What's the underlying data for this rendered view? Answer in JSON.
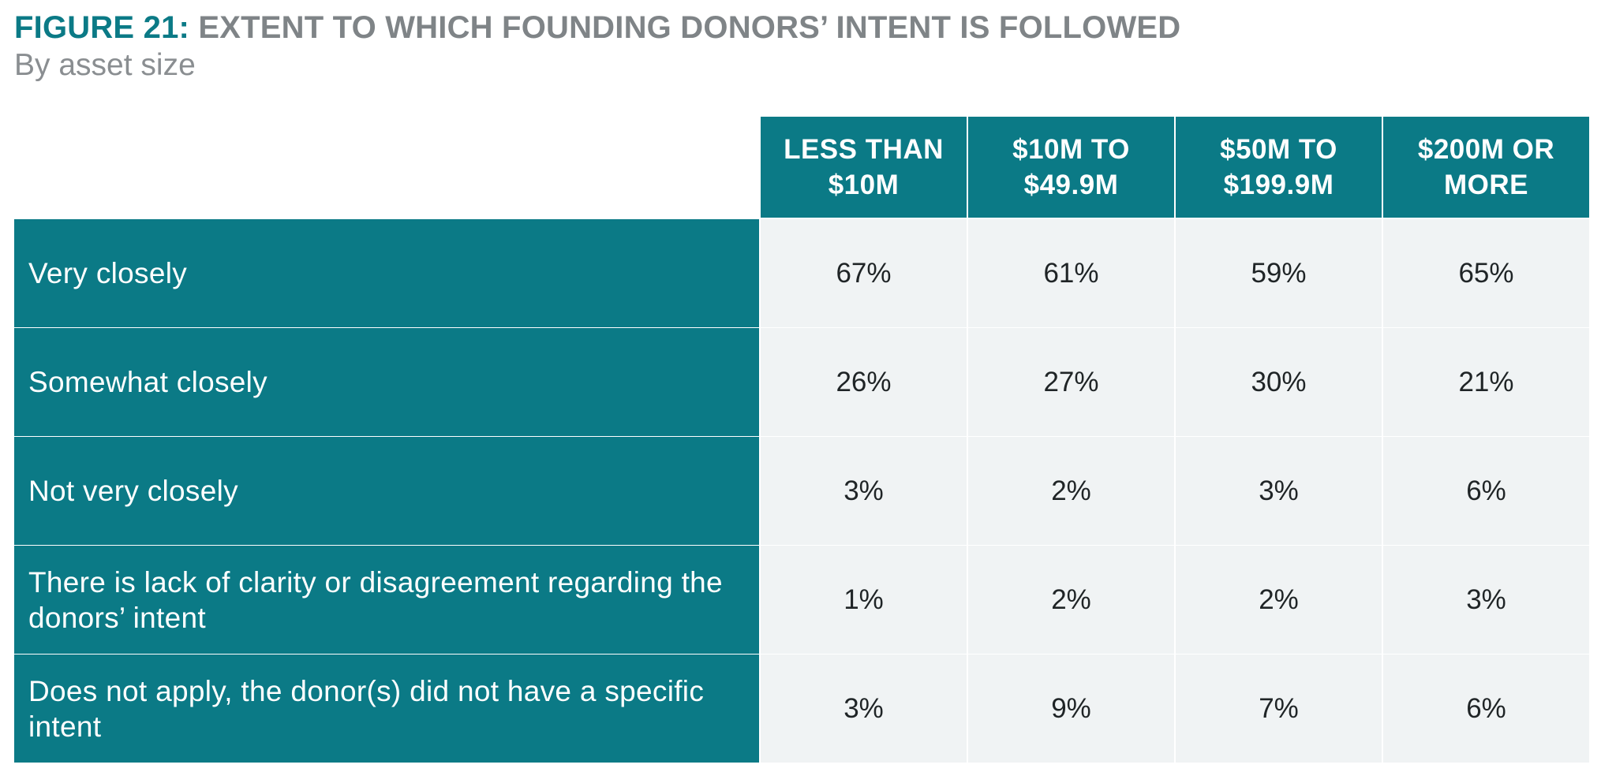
{
  "figure": {
    "label": "FIGURE 21:",
    "title": "EXTENT TO WHICH FOUNDING DONORS’ INTENT IS FOLLOWED",
    "subtitle": "By asset size"
  },
  "colors": {
    "teal": "#0b7a86",
    "title_gray": "#7f8487",
    "cell_bg": "#f0f3f4"
  },
  "chart_data": {
    "type": "table",
    "title": "EXTENT TO WHICH FOUNDING DONORS’ INTENT IS FOLLOWED",
    "subtitle": "By asset size",
    "columns": [
      "LESS THAN $10M",
      "$10M TO $49.9M",
      "$50M TO $199.9M",
      "$200M OR MORE"
    ],
    "rows": [
      {
        "label": "Very closely",
        "values": [
          "67%",
          "61%",
          "59%",
          "65%"
        ]
      },
      {
        "label": "Somewhat closely",
        "values": [
          "26%",
          "27%",
          "30%",
          "21%"
        ]
      },
      {
        "label": "Not very closely",
        "values": [
          "3%",
          "2%",
          "3%",
          "6%"
        ]
      },
      {
        "label": "There is lack of clarity or disagreement regarding the donors’ intent",
        "values": [
          "1%",
          "2%",
          "2%",
          "3%"
        ]
      },
      {
        "label": "Does not apply, the donor(s) did not have a specific intent",
        "values": [
          "3%",
          "9%",
          "7%",
          "6%"
        ]
      }
    ]
  }
}
